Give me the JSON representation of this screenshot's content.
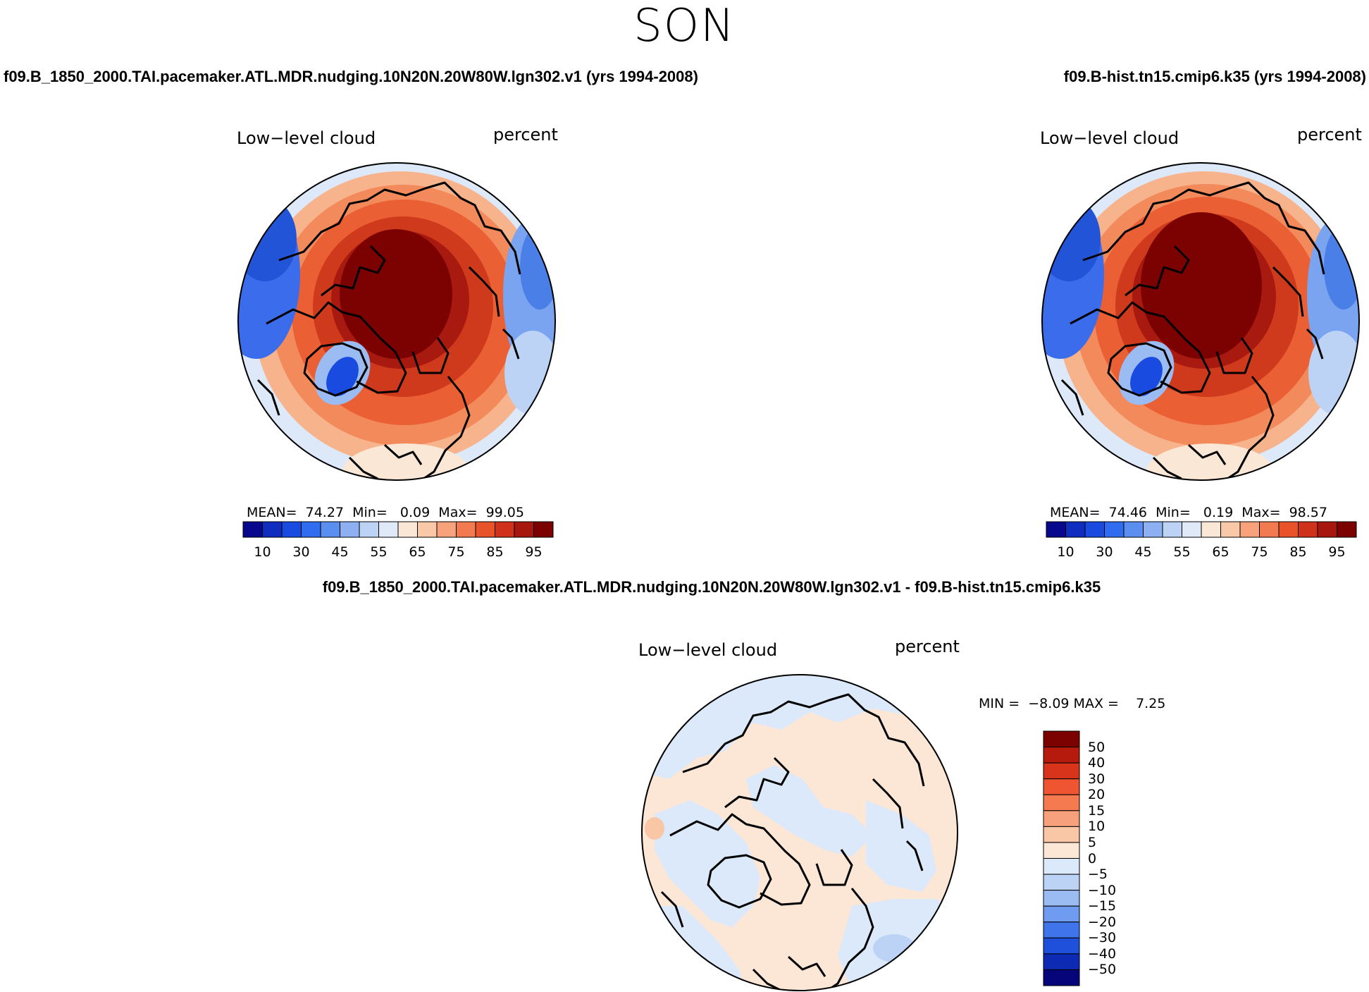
{
  "page": {
    "season": "SON",
    "left_run_title": "f09.B_1850_2000.TAI.pacemaker.ATL.MDR.nudging.10N20N.20W80W.lgn302.v1 (yrs 1994-2008)",
    "right_run_title": "f09.B-hist.tn15.cmip6.k35 (yrs 1994-2008)",
    "diff_title": "f09.B_1850_2000.TAI.pacemaker.ATL.MDR.nudging.10N20N.20W80W.lgn302.v1 - f09.B-hist.tn15.cmip6.k35"
  },
  "chart_data": [
    {
      "type": "heatmap",
      "projection": "north polar stereographic",
      "title": "Low−level cloud",
      "units": "percent",
      "stats": {
        "mean_label": "MEAN=",
        "mean": "74.27",
        "min_label": "Min=",
        "min": "0.09",
        "max_label": "Max=",
        "max": "99.05"
      },
      "colorbar": {
        "orientation": "horizontal",
        "colors": [
          "#08088c",
          "#0f2dbe",
          "#1a4be0",
          "#2f6cf0",
          "#5a8ff0",
          "#8cb0f2",
          "#bcd3f5",
          "#dfe9f7",
          "#fbe7d6",
          "#f9c8a6",
          "#f7a27a",
          "#f27a50",
          "#e8532a",
          "#d0311a",
          "#a8170e",
          "#7c0202"
        ],
        "tick_labels": [
          "10",
          "30",
          "45",
          "55",
          "65",
          "75",
          "85",
          "95"
        ]
      }
    },
    {
      "type": "heatmap",
      "projection": "north polar stereographic",
      "title": "Low−level cloud",
      "units": "percent",
      "stats": {
        "mean_label": "MEAN=",
        "mean": "74.46",
        "min_label": "Min=",
        "min": "0.19",
        "max_label": "Max=",
        "max": "98.57"
      },
      "colorbar": {
        "orientation": "horizontal",
        "colors": [
          "#08088c",
          "#0f2dbe",
          "#1a4be0",
          "#2f6cf0",
          "#5a8ff0",
          "#8cb0f2",
          "#bcd3f5",
          "#dfe9f7",
          "#fbe7d6",
          "#f9c8a6",
          "#f7a27a",
          "#f27a50",
          "#e8532a",
          "#d0311a",
          "#a8170e",
          "#7c0202"
        ],
        "tick_labels": [
          "10",
          "30",
          "45",
          "55",
          "65",
          "75",
          "85",
          "95"
        ]
      }
    },
    {
      "type": "heatmap",
      "projection": "north polar stereographic",
      "title": "Low−level cloud",
      "units": "percent",
      "stats": {
        "min_label": "MIN =",
        "min": "−8.09",
        "max_label": "MAX =",
        "max": "7.25"
      },
      "colorbar": {
        "orientation": "vertical",
        "colors_top_to_bottom": [
          "#7c0202",
          "#b51a0c",
          "#d8341c",
          "#ee5530",
          "#f57a50",
          "#f7a07c",
          "#f9c6a6",
          "#fce6d6",
          "#dbe9fb",
          "#bcd3f5",
          "#9bbcf2",
          "#6f9cf0",
          "#3f74ea",
          "#1e50dc",
          "#0c2ab4",
          "#06067a"
        ],
        "tick_labels": [
          "50",
          "40",
          "30",
          "20",
          "15",
          "10",
          "5",
          "0",
          "−5",
          "−10",
          "−15",
          "−20",
          "−30",
          "−40",
          "−50"
        ]
      }
    }
  ]
}
